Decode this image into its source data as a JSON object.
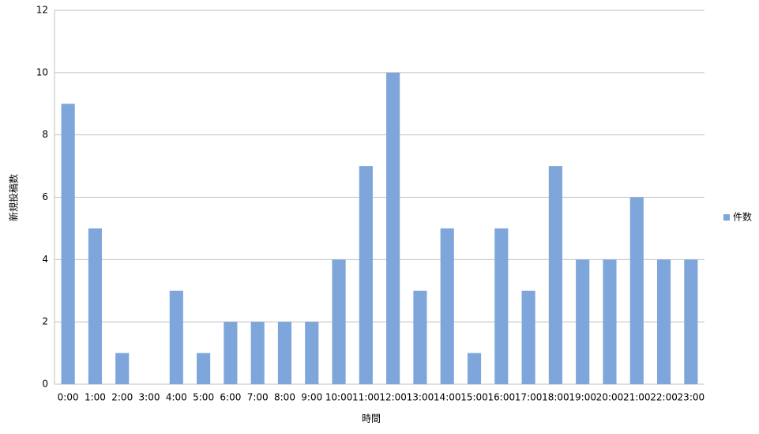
{
  "chart_data": {
    "type": "bar",
    "x_label": "時間",
    "y_label": "新規投稿数",
    "categories": [
      "0:00",
      "1:00",
      "2:00",
      "3:00",
      "4:00",
      "5:00",
      "6:00",
      "7:00",
      "8:00",
      "9:00",
      "10:00",
      "11:00",
      "12:00",
      "13:00",
      "14:00",
      "15:00",
      "16:00",
      "17:00",
      "18:00",
      "19:00",
      "20:00",
      "21:00",
      "22:00",
      "23:00"
    ],
    "series": [
      {
        "name": "件数",
        "color": "#7ea6db",
        "values": [
          9,
          5,
          1,
          0,
          3,
          1,
          2,
          2,
          2,
          2,
          4,
          7,
          10,
          3,
          5,
          1,
          5,
          3,
          7,
          4,
          4,
          6,
          4,
          4
        ]
      }
    ],
    "ylim": [
      0,
      12
    ],
    "yticks": [
      0,
      2,
      4,
      6,
      8,
      10,
      12
    ],
    "grid": true,
    "legend": "right"
  }
}
